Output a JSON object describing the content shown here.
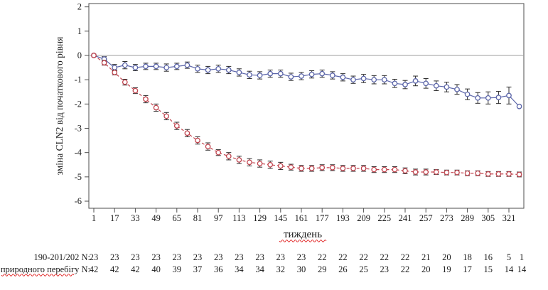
{
  "chart_data": {
    "type": "line",
    "title": "",
    "xlabel": "тиждень",
    "ylabel": "зміна CLN2 від початкового рівня",
    "xlim": [
      1,
      337
    ],
    "ylim": [
      -6,
      2
    ],
    "grid": false,
    "zero_line": true,
    "legend_position": "none",
    "y_ticks": [
      2,
      1,
      0,
      -1,
      -2,
      -3,
      -4,
      -5,
      -6
    ],
    "x_ticks": [
      1,
      17,
      33,
      49,
      65,
      81,
      97,
      113,
      129,
      145,
      161,
      177,
      193,
      209,
      225,
      241,
      257,
      273,
      289,
      305,
      321
    ],
    "x": [
      1,
      9,
      17,
      25,
      33,
      41,
      49,
      57,
      65,
      73,
      81,
      89,
      97,
      105,
      113,
      121,
      129,
      137,
      145,
      153,
      161,
      169,
      177,
      185,
      193,
      201,
      209,
      217,
      225,
      233,
      241,
      249,
      257,
      265,
      273,
      281,
      289,
      297,
      305,
      313,
      321,
      329
    ],
    "series": [
      {
        "name": "190-201/202",
        "color": "#5a64a8",
        "line_style": "solid",
        "marker": "open-circle",
        "values": [
          0.0,
          -0.15,
          -0.5,
          -0.4,
          -0.5,
          -0.45,
          -0.45,
          -0.5,
          -0.45,
          -0.4,
          -0.55,
          -0.6,
          -0.55,
          -0.6,
          -0.7,
          -0.8,
          -0.82,
          -0.75,
          -0.75,
          -0.88,
          -0.85,
          -0.78,
          -0.75,
          -0.82,
          -0.9,
          -1.0,
          -0.95,
          -1.0,
          -1.0,
          -1.15,
          -1.2,
          -1.05,
          -1.15,
          -1.25,
          -1.3,
          -1.4,
          -1.6,
          -1.75,
          -1.75,
          -1.73,
          -1.65,
          -2.1
        ],
        "errors": [
          0.05,
          0.1,
          0.13,
          0.15,
          0.13,
          0.13,
          0.13,
          0.15,
          0.13,
          0.13,
          0.15,
          0.15,
          0.15,
          0.15,
          0.15,
          0.15,
          0.15,
          0.15,
          0.15,
          0.15,
          0.15,
          0.15,
          0.15,
          0.15,
          0.15,
          0.15,
          0.17,
          0.17,
          0.17,
          0.17,
          0.17,
          0.2,
          0.2,
          0.2,
          0.2,
          0.2,
          0.22,
          0.22,
          0.25,
          0.25,
          0.35,
          0
        ]
      },
      {
        "name": "природного перебігу",
        "color": "#c0444e",
        "line_style": "dashed",
        "marker": "open-circle",
        "values": [
          0.0,
          -0.3,
          -0.7,
          -1.1,
          -1.45,
          -1.8,
          -2.15,
          -2.5,
          -2.9,
          -3.2,
          -3.5,
          -3.75,
          -4.0,
          -4.15,
          -4.3,
          -4.4,
          -4.45,
          -4.5,
          -4.55,
          -4.6,
          -4.65,
          -4.65,
          -4.62,
          -4.62,
          -4.65,
          -4.65,
          -4.65,
          -4.7,
          -4.7,
          -4.7,
          -4.75,
          -4.8,
          -4.8,
          -4.8,
          -4.82,
          -4.82,
          -4.85,
          -4.85,
          -4.88,
          -4.88,
          -4.88,
          -4.9
        ],
        "errors": [
          0.05,
          0.1,
          0.1,
          0.12,
          0.12,
          0.15,
          0.15,
          0.15,
          0.15,
          0.15,
          0.15,
          0.15,
          0.12,
          0.15,
          0.15,
          0.15,
          0.15,
          0.15,
          0.15,
          0.12,
          0.12,
          0.12,
          0.12,
          0.12,
          0.12,
          0.12,
          0.12,
          0.12,
          0.12,
          0.12,
          0.12,
          0.12,
          0.12,
          0.1,
          0.1,
          0.1,
          0.1,
          0.1,
          0.1,
          0.1,
          0.1,
          0.1
        ]
      }
    ]
  },
  "n_table": {
    "column_weeks": [
      1,
      17,
      33,
      49,
      65,
      81,
      97,
      113,
      129,
      145,
      161,
      177,
      193,
      209,
      225,
      241,
      257,
      273,
      289,
      305,
      321
    ],
    "extra_end_column": true,
    "rows": [
      {
        "label": "190-201/202 N:",
        "underline": false,
        "values": [
          23,
          23,
          23,
          23,
          23,
          23,
          23,
          23,
          23,
          23,
          23,
          22,
          22,
          22,
          22,
          22,
          21,
          20,
          18,
          16,
          5,
          1
        ]
      },
      {
        "label": "природного перебігу N:",
        "underline": true,
        "values": [
          42,
          42,
          42,
          40,
          39,
          37,
          36,
          34,
          34,
          32,
          30,
          29,
          26,
          25,
          23,
          22,
          20,
          19,
          17,
          15,
          14,
          14
        ]
      }
    ]
  },
  "colors": {
    "frame": "#4d4d4d",
    "zero_line": "#9e9e9e",
    "error_bar": "#2b2b2b",
    "text": "#1a1a1a",
    "squiggle": "#e02020"
  }
}
